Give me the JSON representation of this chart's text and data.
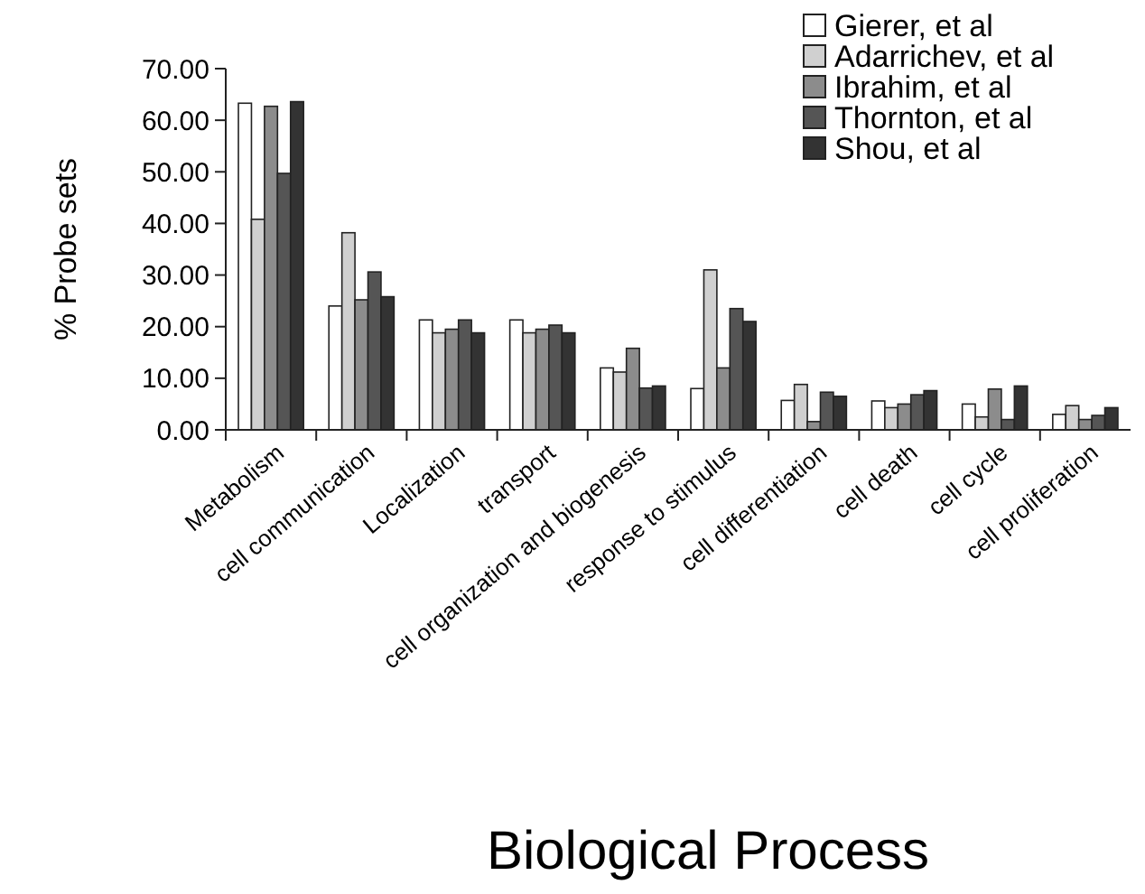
{
  "chart_data": {
    "type": "bar",
    "xlabel": "Biological Process",
    "ylabel": "% Probe sets",
    "categories": [
      "Metabolism",
      "cell communication",
      "Localization",
      "transport",
      "cell organization and biogenesis",
      "response to stimulus",
      "cell differentiation",
      "cell death",
      "cell cycle",
      "cell proliferation"
    ],
    "series": [
      {
        "name": "Gierer, et al",
        "color": "#ffffff",
        "values": [
          63.3,
          24,
          21.3,
          21.3,
          12,
          8,
          5.7,
          5.6,
          5,
          3
        ]
      },
      {
        "name": "Adarrichev, et al",
        "color": "#d0d0d0",
        "values": [
          40.8,
          38.2,
          18.8,
          18.8,
          11.2,
          31,
          8.8,
          4.3,
          2.5,
          4.7
        ]
      },
      {
        "name": "Ibrahim, et al",
        "color": "#8c8c8c",
        "values": [
          62.7,
          25.2,
          19.5,
          19.5,
          15.8,
          12,
          1.6,
          5,
          7.9,
          2
        ]
      },
      {
        "name": "Thornton, et al",
        "color": "#555555",
        "values": [
          49.7,
          30.6,
          21.3,
          20.3,
          8.1,
          23.5,
          7.3,
          6.8,
          2,
          2.8
        ]
      },
      {
        "name": "Shou, et al",
        "color": "#333333",
        "values": [
          63.6,
          25.8,
          18.8,
          18.8,
          8.5,
          21,
          6.5,
          7.6,
          8.5,
          4.3
        ]
      }
    ],
    "ylim": [
      0,
      70
    ],
    "yticks": [
      {
        "value": 0,
        "label": "0.00"
      },
      {
        "value": 10,
        "label": "10.00"
      },
      {
        "value": 20,
        "label": "20.00"
      },
      {
        "value": 30,
        "label": "30.00"
      },
      {
        "value": 40,
        "label": "40.00"
      },
      {
        "value": 50,
        "label": "50.00"
      },
      {
        "value": 60,
        "label": "60.00"
      },
      {
        "value": 70,
        "label": "70.00"
      }
    ],
    "grid": false,
    "legend": "top right"
  }
}
